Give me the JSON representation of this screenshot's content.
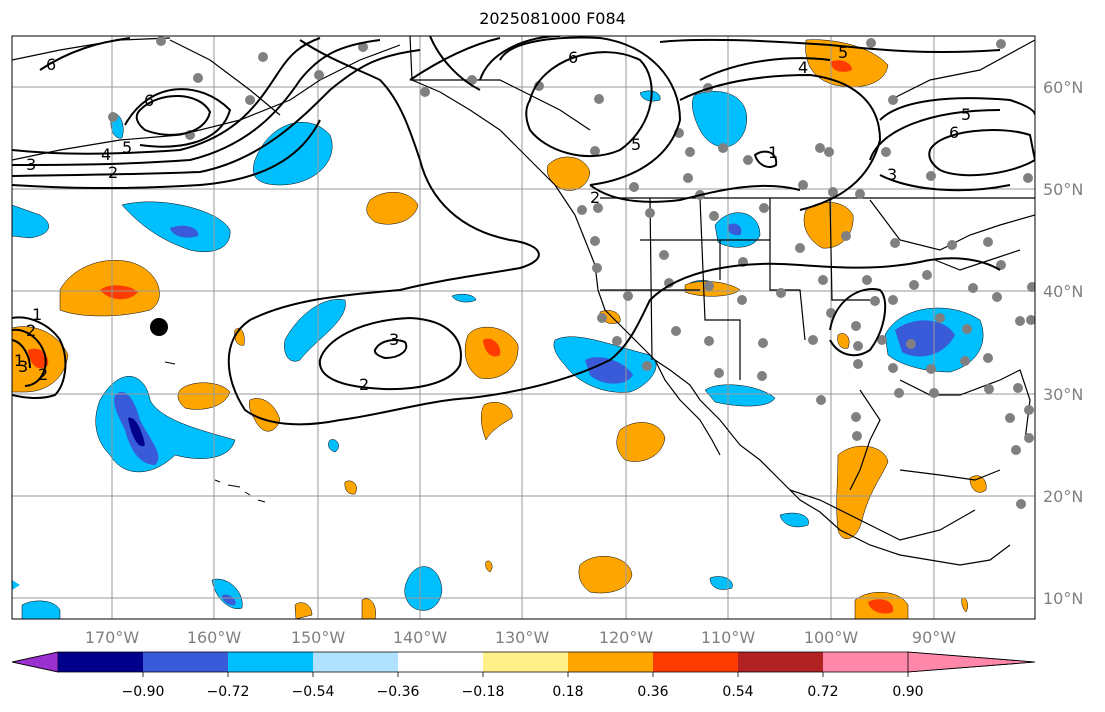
{
  "title": "2025081000 F084",
  "map": {
    "lon_labels": [
      "170°W",
      "160°W",
      "150°W",
      "140°W",
      "130°W",
      "120°W",
      "110°W",
      "100°W",
      "90°W"
    ],
    "lat_labels": [
      "60°N",
      "50°N",
      "40°N",
      "30°N",
      "20°N",
      "10°N"
    ],
    "contour_labels": [
      "6",
      "6",
      "5",
      "4",
      "3",
      "2",
      "6",
      "5",
      "2",
      "4",
      "5",
      "6",
      "5",
      "3",
      "1",
      "1",
      "2",
      "3",
      "2",
      "1",
      "2",
      "3"
    ]
  },
  "colorbar": {
    "ticks": [
      "−0.90",
      "−0.72",
      "−0.54",
      "−0.36",
      "−0.18",
      "0.18",
      "0.36",
      "0.54",
      "0.72",
      "0.90"
    ],
    "colors": [
      "#9b30d0",
      "#00008b",
      "#3a5bd9",
      "#00bfff",
      "#b0e2ff",
      "#ffffff",
      "#fff08a",
      "#ffa500",
      "#ff3c00",
      "#b22222",
      "#ff88aa"
    ]
  }
}
